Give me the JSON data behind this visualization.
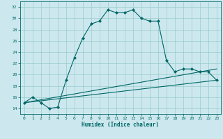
{
  "title": "",
  "xlabel": "Humidex (Indice chaleur)",
  "ylabel": "",
  "background_color": "#cce8ee",
  "grid_color": "#99cccc",
  "line_color": "#006666",
  "xlim": [
    -0.5,
    23.5
  ],
  "ylim": [
    13.0,
    33.0
  ],
  "xticks": [
    0,
    1,
    2,
    3,
    4,
    5,
    6,
    7,
    8,
    9,
    10,
    11,
    12,
    13,
    14,
    15,
    16,
    17,
    18,
    19,
    20,
    21,
    22,
    23
  ],
  "yticks": [
    14,
    16,
    18,
    20,
    22,
    24,
    26,
    28,
    30,
    32
  ],
  "main_x": [
    0,
    1,
    2,
    3,
    4,
    5,
    6,
    7,
    8,
    9,
    10,
    11,
    12,
    13,
    14,
    15,
    16,
    17,
    18,
    19,
    20,
    21,
    22,
    23
  ],
  "main_y": [
    15.0,
    16.0,
    15.0,
    14.0,
    14.2,
    19.0,
    23.0,
    26.5,
    29.0,
    29.5,
    31.5,
    31.0,
    31.0,
    31.5,
    30.0,
    29.5,
    29.5,
    22.5,
    20.5,
    21.0,
    21.0,
    20.5,
    20.5,
    19.0
  ],
  "line2_x": [
    0,
    23
  ],
  "line2_y": [
    15.0,
    21.0
  ],
  "line3_x": [
    0,
    23
  ],
  "line3_y": [
    15.0,
    19.0
  ]
}
